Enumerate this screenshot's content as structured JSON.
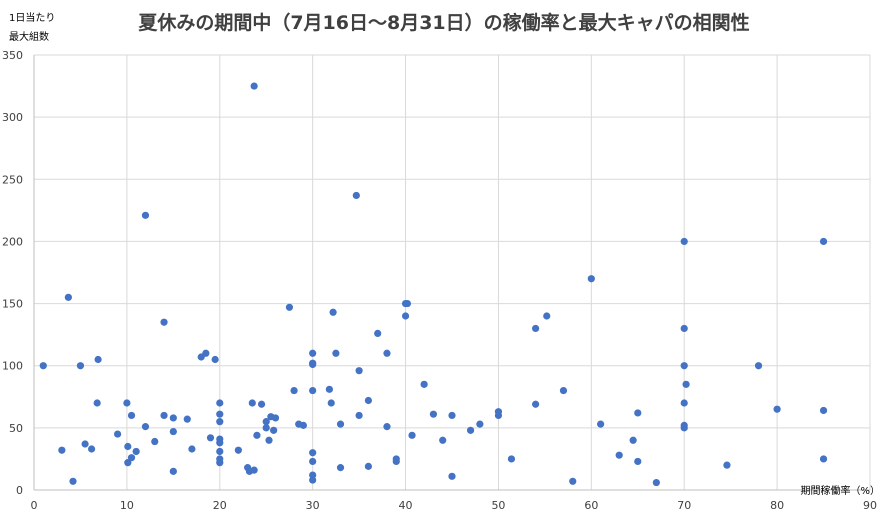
{
  "chart_data": {
    "type": "scatter",
    "title": "夏休みの期間中（7月16日〜8月31日）の稼働率と最大キャパの相関性",
    "ylabel_lines": [
      "1日当たり",
      "最大組数"
    ],
    "xlabel": "期間稼働率（%）",
    "xlim": [
      0,
      90
    ],
    "ylim": [
      0,
      350
    ],
    "x_ticks": [
      0,
      10,
      20,
      30,
      40,
      50,
      60,
      70,
      80,
      90
    ],
    "y_ticks": [
      0,
      50,
      100,
      150,
      200,
      250,
      300,
      350
    ],
    "grid": true,
    "marker_color": "#4472C4",
    "points": [
      [
        1,
        100
      ],
      [
        3,
        32
      ],
      [
        3.7,
        155
      ],
      [
        4.2,
        7
      ],
      [
        5,
        100
      ],
      [
        5.5,
        37
      ],
      [
        6.2,
        33
      ],
      [
        6.8,
        70
      ],
      [
        6.9,
        105
      ],
      [
        9,
        45
      ],
      [
        10,
        70
      ],
      [
        10.1,
        22
      ],
      [
        10.1,
        35
      ],
      [
        10.5,
        60
      ],
      [
        10.5,
        26
      ],
      [
        11,
        31
      ],
      [
        12,
        221
      ],
      [
        12,
        51
      ],
      [
        13,
        39
      ],
      [
        14,
        60
      ],
      [
        14,
        135
      ],
      [
        15,
        58
      ],
      [
        15,
        47
      ],
      [
        15,
        15
      ],
      [
        16.5,
        57
      ],
      [
        17,
        33
      ],
      [
        18,
        107
      ],
      [
        18.5,
        110
      ],
      [
        19,
        42
      ],
      [
        19.5,
        105
      ],
      [
        20,
        70
      ],
      [
        20,
        61
      ],
      [
        20,
        55
      ],
      [
        20,
        41
      ],
      [
        20,
        38
      ],
      [
        20,
        31
      ],
      [
        20,
        25
      ],
      [
        20,
        22
      ],
      [
        22,
        32
      ],
      [
        23,
        18
      ],
      [
        23.2,
        15
      ],
      [
        23.5,
        70
      ],
      [
        23.7,
        16
      ],
      [
        23.7,
        325
      ],
      [
        24,
        44
      ],
      [
        24.5,
        69
      ],
      [
        25,
        55
      ],
      [
        25,
        50
      ],
      [
        25.3,
        40
      ],
      [
        25.5,
        59
      ],
      [
        25.8,
        48
      ],
      [
        26,
        58
      ],
      [
        27.5,
        147
      ],
      [
        28,
        80
      ],
      [
        28.5,
        53
      ],
      [
        29,
        52
      ],
      [
        30,
        110
      ],
      [
        30,
        102
      ],
      [
        30,
        101
      ],
      [
        30,
        80
      ],
      [
        30,
        30
      ],
      [
        30,
        23
      ],
      [
        30,
        12
      ],
      [
        30,
        8
      ],
      [
        31.8,
        81
      ],
      [
        32,
        70
      ],
      [
        32.2,
        143
      ],
      [
        32.5,
        110
      ],
      [
        33,
        53
      ],
      [
        33,
        18
      ],
      [
        34.7,
        237
      ],
      [
        35,
        96
      ],
      [
        35,
        60
      ],
      [
        36,
        72
      ],
      [
        36,
        19
      ],
      [
        37,
        126
      ],
      [
        38,
        110
      ],
      [
        38,
        51
      ],
      [
        39,
        25
      ],
      [
        39,
        23
      ],
      [
        40,
        150
      ],
      [
        40,
        140
      ],
      [
        40.2,
        150
      ],
      [
        40.7,
        44
      ],
      [
        42,
        85
      ],
      [
        43,
        61
      ],
      [
        44,
        40
      ],
      [
        45,
        60
      ],
      [
        45,
        11
      ],
      [
        47,
        48
      ],
      [
        48,
        53
      ],
      [
        50,
        63
      ],
      [
        50,
        60
      ],
      [
        51.4,
        25
      ],
      [
        54,
        130
      ],
      [
        54,
        69
      ],
      [
        55.2,
        140
      ],
      [
        57,
        80
      ],
      [
        58,
        7
      ],
      [
        60,
        170
      ],
      [
        61,
        53
      ],
      [
        63,
        28
      ],
      [
        64.5,
        40
      ],
      [
        65,
        62
      ],
      [
        65,
        23
      ],
      [
        67,
        6
      ],
      [
        70,
        200
      ],
      [
        70,
        130
      ],
      [
        70,
        100
      ],
      [
        70,
        70
      ],
      [
        70,
        52
      ],
      [
        70,
        50
      ],
      [
        70.2,
        85
      ],
      [
        74.6,
        20
      ],
      [
        78,
        100
      ],
      [
        80,
        65
      ],
      [
        85,
        200
      ],
      [
        85,
        64
      ],
      [
        85,
        25
      ]
    ]
  }
}
